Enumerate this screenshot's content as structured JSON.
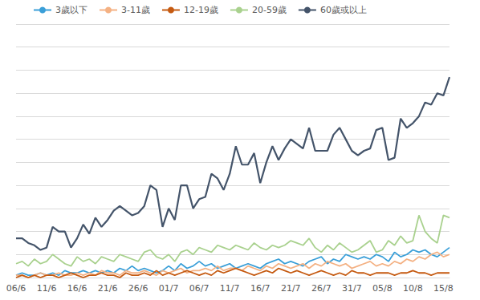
{
  "chart_data": {
    "type": "line",
    "categories": [
      "06/6",
      null,
      null,
      null,
      null,
      "11/6",
      null,
      null,
      null,
      null,
      "16/6",
      null,
      null,
      null,
      null,
      "21/6",
      null,
      null,
      null,
      null,
      "26/6",
      null,
      null,
      null,
      null,
      "01/7",
      null,
      null,
      null,
      null,
      "06/7",
      null,
      null,
      null,
      null,
      "11/7",
      null,
      null,
      null,
      null,
      "16/7",
      null,
      null,
      null,
      null,
      "21/7",
      null,
      null,
      null,
      null,
      "26/7",
      null,
      null,
      null,
      null,
      "31/7",
      null,
      null,
      null,
      null,
      "05/8",
      null,
      null,
      null,
      null,
      "10/8",
      null,
      null,
      null,
      null,
      "15/8",
      null
    ],
    "series": [
      {
        "name": "3歲以下",
        "color": "#3a9fd8",
        "values": [
          1,
          2,
          1,
          1,
          2,
          1,
          2,
          1,
          3,
          2,
          2,
          3,
          2,
          3,
          2,
          3,
          2,
          4,
          3,
          5,
          3,
          4,
          3,
          2,
          3,
          5,
          3,
          6,
          4,
          5,
          7,
          5,
          6,
          4,
          5,
          6,
          4,
          5,
          6,
          5,
          4,
          6,
          7,
          8,
          6,
          7,
          6,
          5,
          7,
          8,
          9,
          6,
          8,
          7,
          10,
          9,
          8,
          9,
          8,
          10,
          9,
          7,
          11,
          9,
          10,
          12,
          11,
          12,
          10,
          9,
          11,
          13
        ]
      },
      {
        "name": "3-11歲",
        "color": "#f4b183",
        "values": [
          1,
          1,
          0,
          1,
          2,
          1,
          1,
          2,
          1,
          1,
          2,
          1,
          2,
          1,
          3,
          2,
          2,
          1,
          3,
          2,
          2,
          3,
          2,
          1,
          3,
          2,
          3,
          4,
          2,
          3,
          3,
          4,
          3,
          5,
          3,
          4,
          4,
          3,
          5,
          4,
          3,
          5,
          4,
          6,
          5,
          4,
          5,
          6,
          4,
          6,
          5,
          7,
          6,
          5,
          6,
          4,
          5,
          6,
          7,
          5,
          6,
          5,
          7,
          6,
          8,
          7,
          9,
          8,
          10,
          11,
          9,
          10
        ]
      },
      {
        "name": "12-19歲",
        "color": "#c55a11",
        "values": [
          0,
          1,
          0,
          1,
          0,
          1,
          1,
          0,
          1,
          2,
          1,
          0,
          1,
          1,
          2,
          1,
          1,
          0,
          2,
          1,
          1,
          2,
          1,
          3,
          1,
          2,
          1,
          2,
          3,
          2,
          1,
          2,
          1,
          3,
          2,
          3,
          4,
          3,
          2,
          1,
          2,
          3,
          2,
          4,
          3,
          2,
          3,
          2,
          1,
          2,
          3,
          2,
          1,
          2,
          1,
          3,
          2,
          2,
          1,
          2,
          2,
          2,
          1,
          2,
          2,
          3,
          2,
          2,
          1,
          2,
          2,
          2
        ]
      },
      {
        "name": "20-59歲",
        "color": "#a9d18e",
        "values": [
          6,
          7,
          5,
          8,
          6,
          7,
          10,
          8,
          6,
          5,
          9,
          7,
          8,
          6,
          9,
          8,
          7,
          10,
          9,
          8,
          7,
          11,
          12,
          9,
          8,
          10,
          7,
          11,
          12,
          10,
          13,
          12,
          11,
          14,
          13,
          12,
          14,
          13,
          12,
          15,
          13,
          12,
          14,
          13,
          14,
          16,
          15,
          14,
          17,
          13,
          11,
          14,
          12,
          15,
          13,
          11,
          12,
          14,
          16,
          11,
          12,
          16,
          14,
          18,
          15,
          16,
          27,
          20,
          17,
          15,
          27,
          26
        ]
      },
      {
        "name": "60歲或以上",
        "color": "#44546a",
        "values": [
          17,
          17,
          15,
          14,
          12,
          13,
          22,
          20,
          20,
          13,
          17,
          23,
          19,
          26,
          22,
          25,
          29,
          31,
          29,
          27,
          28,
          31,
          40,
          38,
          22,
          30,
          25,
          40,
          40,
          30,
          34,
          35,
          45,
          43,
          38,
          45,
          57,
          49,
          49,
          54,
          41,
          50,
          57,
          51,
          56,
          60,
          58,
          56,
          65,
          55,
          55,
          55,
          62,
          65,
          60,
          55,
          53,
          55,
          56,
          64,
          65,
          51,
          52,
          69,
          65,
          67,
          70,
          76,
          75,
          80,
          79,
          87
        ]
      }
    ],
    "ylim": [
      0,
      110
    ],
    "yticks": [
      0,
      10,
      20,
      30,
      40,
      50,
      60,
      70,
      80,
      90,
      100,
      110
    ],
    "grid": true,
    "legend": "top-left",
    "tick_labels": "x"
  }
}
